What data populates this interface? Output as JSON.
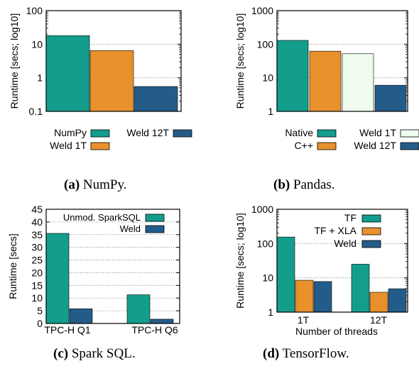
{
  "colors": {
    "teal": "#139e8c",
    "orange": "#e8912c",
    "blue": "#245c89",
    "pale": "#eefbee"
  },
  "captions": [
    {
      "label": "(a)",
      "text": "NumPy."
    },
    {
      "label": "(b)",
      "text": "Pandas."
    },
    {
      "label": "(c)",
      "text": "Spark SQL."
    },
    {
      "label": "(d)",
      "text": "TensorFlow."
    }
  ],
  "chart_data": [
    {
      "type": "bar",
      "id": "a",
      "ylabel": "Runtime [secs; log10]",
      "log_y": true,
      "ylim": [
        0.1,
        100
      ],
      "yticks": [
        0.1,
        1,
        10,
        100
      ],
      "ytick_labels": [
        "0.1",
        "1",
        "10",
        "100"
      ],
      "grid": true,
      "legend_position": "bottom",
      "series": [
        {
          "name": "NumPy",
          "value": 18,
          "color": "teal"
        },
        {
          "name": "Weld 1T",
          "value": 6.5,
          "color": "orange"
        },
        {
          "name": "Weld 12T",
          "value": 0.55,
          "color": "blue"
        }
      ]
    },
    {
      "type": "bar",
      "id": "b",
      "ylabel": "Runtime [secs; log10]",
      "log_y": true,
      "ylim": [
        1,
        1000
      ],
      "yticks": [
        1,
        10,
        100,
        1000
      ],
      "ytick_labels": [
        "1",
        "10",
        "100",
        "1000"
      ],
      "grid": true,
      "legend_position": "bottom",
      "series": [
        {
          "name": "Native",
          "value": 130,
          "color": "teal"
        },
        {
          "name": "C++",
          "value": 62,
          "color": "orange"
        },
        {
          "name": "Weld 1T",
          "value": 52,
          "color": "pale"
        },
        {
          "name": "Weld 12T",
          "value": 6,
          "color": "blue"
        }
      ]
    },
    {
      "type": "bar",
      "id": "c",
      "ylabel": "Runtime [secs]",
      "log_y": false,
      "ylim": [
        0,
        45
      ],
      "yticks": [
        0,
        5,
        10,
        15,
        20,
        25,
        30,
        35,
        40,
        45
      ],
      "ytick_labels": [
        "0",
        "5",
        "10",
        "15",
        "20",
        "25",
        "30",
        "35",
        "40",
        "45"
      ],
      "grid": true,
      "legend_position": "top-right",
      "categories": [
        "TPC-H Q1",
        "TPC-H Q6"
      ],
      "series": [
        {
          "name": "Unmod. SparkSQL",
          "values": [
            35.5,
            11.3
          ],
          "color": "teal"
        },
        {
          "name": "Weld",
          "values": [
            5.8,
            1.7
          ],
          "color": "blue"
        }
      ]
    },
    {
      "type": "bar",
      "id": "d",
      "ylabel": "Runtime [secs; log10]",
      "xlabel": "Number of threads",
      "log_y": true,
      "ylim": [
        1,
        1000
      ],
      "yticks": [
        1,
        10,
        100,
        1000
      ],
      "ytick_labels": [
        "1",
        "10",
        "100",
        "1000"
      ],
      "grid": true,
      "legend_position": "top-right",
      "categories": [
        "1T",
        "12T"
      ],
      "series": [
        {
          "name": "TF",
          "values": [
            155,
            25
          ],
          "color": "teal"
        },
        {
          "name": "TF + XLA",
          "values": [
            8.5,
            3.8
          ],
          "color": "orange"
        },
        {
          "name": "Weld",
          "values": [
            7.8,
            4.8
          ],
          "color": "blue"
        }
      ]
    }
  ]
}
